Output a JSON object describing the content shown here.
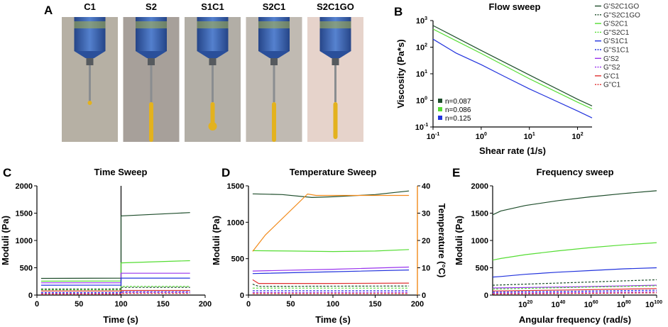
{
  "panels": {
    "A": {
      "letter": "A",
      "photo_labels": [
        "C1",
        "S2",
        "S1C1",
        "S2C1",
        "S2C1GO"
      ]
    },
    "B": {
      "letter": "B"
    },
    "C": {
      "letter": "C"
    },
    "D": {
      "letter": "D"
    },
    "E": {
      "letter": "E"
    }
  },
  "legend": [
    {
      "label": "G'S2C1GO",
      "color": "#1e4d2b",
      "dash": false
    },
    {
      "label": "G\"S2C1GO",
      "color": "#1e4d2b",
      "dash": true
    },
    {
      "label": "G'S2C1",
      "color": "#55dd33",
      "dash": false
    },
    {
      "label": "G\"S2C1",
      "color": "#55dd33",
      "dash": true
    },
    {
      "label": "G'S1C1",
      "color": "#2233dd",
      "dash": false
    },
    {
      "label": "G\"S1C1",
      "color": "#2233dd",
      "dash": true
    },
    {
      "label": "G'S2",
      "color": "#9933ee",
      "dash": false
    },
    {
      "label": "G\"S2",
      "color": "#9933ee",
      "dash": true
    },
    {
      "label": "G'C1",
      "color": "#e03030",
      "dash": false
    },
    {
      "label": "G\"C1",
      "color": "#e03030",
      "dash": true
    }
  ],
  "chart_data": [
    {
      "panel": "B",
      "type": "line",
      "title": "Flow sweep",
      "xlabel": "Shear rate (1/s)",
      "ylabel": "Viscosity (Pa*s)",
      "xscale": "log",
      "yscale": "log",
      "xlim": [
        0.1,
        200
      ],
      "ylim": [
        0.1,
        1000
      ],
      "xticks": [
        {
          "base": "10",
          "exp": "-1"
        },
        {
          "base": "10",
          "exp": "0"
        },
        {
          "base": "10",
          "exp": "1"
        },
        {
          "base": "10",
          "exp": "2"
        }
      ],
      "yticks": [
        {
          "base": "10",
          "exp": "-1"
        },
        {
          "base": "10",
          "exp": "0"
        },
        {
          "base": "10",
          "exp": "1"
        },
        {
          "base": "10",
          "exp": "2"
        },
        {
          "base": "10",
          "exp": "3"
        }
      ],
      "annotations": [
        "n=0.087",
        "n=0.086",
        "n=0.125"
      ],
      "series": [
        {
          "name": "S2C1GO",
          "color": "#1e4d2b",
          "x": [
            0.1,
            1,
            10,
            100,
            200
          ],
          "y": [
            650,
            75,
            9,
            1.1,
            0.62
          ]
        },
        {
          "name": "S2C1",
          "color": "#55dd33",
          "x": [
            0.1,
            1,
            10,
            100,
            200
          ],
          "y": [
            480,
            58,
            6.5,
            0.85,
            0.48
          ]
        },
        {
          "name": "S1C1",
          "color": "#2233dd",
          "x": [
            0.1,
            0.3,
            1,
            3,
            10,
            100,
            200
          ],
          "y": [
            200,
            60,
            22,
            8,
            2.7,
            0.4,
            0.22
          ]
        }
      ]
    },
    {
      "panel": "C",
      "type": "line",
      "title": "Time Sweep",
      "xlabel": "Time (s)",
      "ylabel": "Moduli (Pa)",
      "xlim": [
        0,
        200
      ],
      "ylim": [
        0,
        2000
      ],
      "xticks": [
        0,
        50,
        100,
        150,
        200
      ],
      "yticks": [
        0,
        500,
        1000,
        1500,
        2000
      ],
      "break_x": 100,
      "series": [
        {
          "name": "G'S2C1GO",
          "color": "#1e4d2b",
          "dash": false,
          "x": [
            5,
            100,
            100,
            182
          ],
          "y": [
            305,
            310,
            1450,
            1510
          ]
        },
        {
          "name": "G'S2C1",
          "color": "#55dd33",
          "dash": false,
          "x": [
            5,
            100,
            100,
            182
          ],
          "y": [
            255,
            258,
            590,
            630
          ]
        },
        {
          "name": "G'S2",
          "color": "#9933ee",
          "dash": false,
          "x": [
            5,
            100,
            100,
            182
          ],
          "y": [
            225,
            225,
            400,
            400
          ]
        },
        {
          "name": "G'S1C1",
          "color": "#2233dd",
          "dash": false,
          "x": [
            5,
            100,
            100,
            182
          ],
          "y": [
            180,
            182,
            310,
            310
          ]
        },
        {
          "name": "G\"S2C1",
          "color": "#55dd33",
          "dash": true,
          "x": [
            5,
            100,
            100,
            182
          ],
          "y": [
            95,
            95,
            160,
            160
          ]
        },
        {
          "name": "G\"S2C1GO",
          "color": "#1e4d2b",
          "dash": true,
          "x": [
            5,
            100,
            100,
            182
          ],
          "y": [
            110,
            112,
            140,
            142
          ]
        },
        {
          "name": "G'C1",
          "color": "#e03030",
          "dash": false,
          "x": [
            5,
            100,
            100,
            182
          ],
          "y": [
            75,
            75,
            85,
            85
          ]
        },
        {
          "name": "G\"S1C1",
          "color": "#2233dd",
          "dash": true,
          "x": [
            5,
            100,
            100,
            182
          ],
          "y": [
            45,
            45,
            60,
            60
          ]
        },
        {
          "name": "G\"S2",
          "color": "#9933ee",
          "dash": true,
          "x": [
            5,
            100,
            100,
            182
          ],
          "y": [
            30,
            30,
            50,
            50
          ]
        },
        {
          "name": "G\"C1",
          "color": "#e03030",
          "dash": true,
          "x": [
            5,
            100,
            100,
            182
          ],
          "y": [
            20,
            20,
            30,
            30
          ]
        }
      ]
    },
    {
      "panel": "D",
      "type": "line",
      "title": "Temperature Sweep",
      "xlabel": "Time (s)",
      "ylabel": "Moduli (Pa)",
      "y2label": "Temperature (°C)",
      "xlim": [
        0,
        200
      ],
      "ylim": [
        0,
        1500
      ],
      "y2lim": [
        0,
        40
      ],
      "xticks": [
        0,
        50,
        100,
        150,
        200
      ],
      "yticks": [
        0,
        500,
        1000,
        1500
      ],
      "y2ticks": [
        0,
        10,
        20,
        30,
        40
      ],
      "series": [
        {
          "name": "G'S2C1GO",
          "color": "#1e4d2b",
          "dash": false,
          "x": [
            5,
            40,
            75,
            100,
            150,
            190
          ],
          "y": [
            1390,
            1380,
            1340,
            1350,
            1380,
            1430
          ]
        },
        {
          "name": "G'S2C1",
          "color": "#55dd33",
          "dash": false,
          "x": [
            5,
            50,
            100,
            150,
            190
          ],
          "y": [
            610,
            605,
            598,
            605,
            625
          ]
        },
        {
          "name": "G'S2",
          "color": "#9933ee",
          "dash": false,
          "x": [
            5,
            100,
            190
          ],
          "y": [
            330,
            355,
            385
          ]
        },
        {
          "name": "G'S1C1",
          "color": "#2233dd",
          "dash": false,
          "x": [
            5,
            100,
            190
          ],
          "y": [
            295,
            320,
            345
          ]
        },
        {
          "name": "G'C1",
          "color": "#e03030",
          "dash": false,
          "x": [
            5,
            12,
            50,
            100,
            190
          ],
          "y": [
            210,
            160,
            160,
            160,
            165
          ]
        },
        {
          "name": "G\"S2C1GO",
          "color": "#1e4d2b",
          "dash": true,
          "x": [
            5,
            12,
            190
          ],
          "y": [
            150,
            120,
            125
          ]
        },
        {
          "name": "G\"S2C1",
          "color": "#55dd33",
          "dash": true,
          "x": [
            5,
            190
          ],
          "y": [
            95,
            95
          ]
        },
        {
          "name": "G\"S1C1",
          "color": "#2233dd",
          "dash": true,
          "x": [
            5,
            190
          ],
          "y": [
            60,
            60
          ]
        },
        {
          "name": "G\"S2",
          "color": "#9933ee",
          "dash": true,
          "x": [
            5,
            190
          ],
          "y": [
            35,
            38
          ]
        },
        {
          "name": "G\"C1",
          "color": "#e03030",
          "dash": true,
          "x": [
            5,
            190
          ],
          "y": [
            20,
            20
          ]
        },
        {
          "name": "Temperature",
          "color": "#f28a1a",
          "dash": false,
          "axis": "y2",
          "x": [
            5,
            20,
            70,
            80,
            190
          ],
          "y": [
            16,
            22,
            37,
            36.5,
            36.5
          ]
        }
      ]
    },
    {
      "panel": "E",
      "type": "line",
      "title": "Frequency sweep",
      "xlabel": "Angular frequency (rad/s)",
      "ylabel": "Moduli (Pa)",
      "xlim": [
        0,
        100
      ],
      "ylim": [
        0,
        2000
      ],
      "xticks": [
        {
          "base": "10",
          "exp": "20"
        },
        {
          "base": "10",
          "exp": "40"
        },
        {
          "base": "10",
          "exp": "60"
        },
        {
          "base": "10",
          "exp": "80"
        },
        {
          "base": "10",
          "exp": "100"
        }
      ],
      "xtick_pos": [
        20,
        40,
        60,
        80,
        100
      ],
      "yticks": [
        0,
        500,
        1000,
        1500,
        2000
      ],
      "series": [
        {
          "name": "G'S2C1GO",
          "color": "#1e4d2b",
          "dash": false,
          "x": [
            0,
            5,
            20,
            40,
            60,
            80,
            100
          ],
          "y": [
            1470,
            1540,
            1640,
            1730,
            1800,
            1860,
            1910
          ]
        },
        {
          "name": "G'S2C1",
          "color": "#55dd33",
          "dash": false,
          "x": [
            0,
            5,
            20,
            40,
            60,
            80,
            100
          ],
          "y": [
            640,
            670,
            740,
            810,
            870,
            920,
            960
          ]
        },
        {
          "name": "G'S1C1",
          "color": "#2233dd",
          "dash": false,
          "x": [
            0,
            5,
            20,
            40,
            60,
            80,
            100
          ],
          "y": [
            330,
            340,
            380,
            420,
            450,
            480,
            500
          ]
        },
        {
          "name": "G\"S2C1GO",
          "color": "#1e4d2b",
          "dash": true,
          "x": [
            0,
            50,
            100
          ],
          "y": [
            180,
            230,
            280
          ]
        },
        {
          "name": "G'S2",
          "color": "#9933ee",
          "dash": false,
          "x": [
            0,
            50,
            100
          ],
          "y": [
            130,
            150,
            180
          ]
        },
        {
          "name": "G\"S2C1",
          "color": "#55dd33",
          "dash": true,
          "x": [
            0,
            50,
            100
          ],
          "y": [
            110,
            140,
            170
          ]
        },
        {
          "name": "G'C1",
          "color": "#e03030",
          "dash": false,
          "x": [
            0,
            50,
            100
          ],
          "y": [
            75,
            95,
            120
          ]
        },
        {
          "name": "G\"S1C1",
          "color": "#2233dd",
          "dash": true,
          "x": [
            0,
            50,
            100
          ],
          "y": [
            55,
            70,
            90
          ]
        },
        {
          "name": "G\"S2",
          "color": "#9933ee",
          "dash": true,
          "x": [
            0,
            50,
            100
          ],
          "y": [
            35,
            45,
            60
          ]
        },
        {
          "name": "G\"C1",
          "color": "#e03030",
          "dash": true,
          "x": [
            0,
            50,
            100
          ],
          "y": [
            20,
            30,
            40
          ]
        }
      ]
    }
  ]
}
